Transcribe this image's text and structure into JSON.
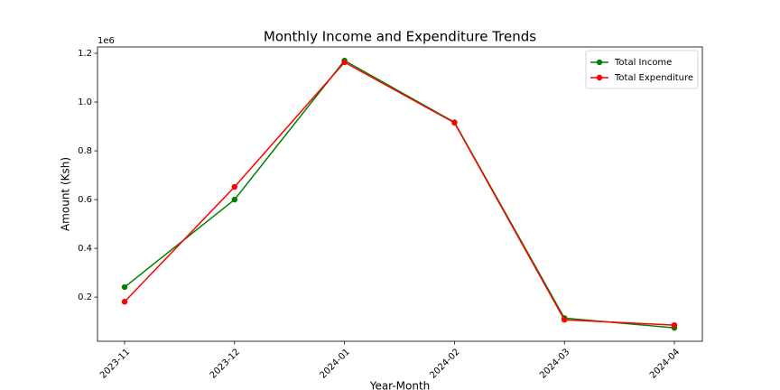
{
  "chart_data": {
    "type": "line",
    "title": "Monthly Income and Expenditure Trends",
    "x_label": "Year-Month",
    "y_label": "Amount (Ksh)",
    "y_offset_label": "1e6",
    "categories": [
      "2023-11",
      "2023-12",
      "2024-01",
      "2024-02",
      "2024-03",
      "2024-04"
    ],
    "series": [
      {
        "name": "Total Income",
        "color": "#008000",
        "values": [
          0.241,
          0.6,
          1.17,
          0.917,
          0.114,
          0.074
        ]
      },
      {
        "name": "Total Expenditure",
        "color": "#ff0000",
        "values": [
          0.181,
          0.652,
          1.163,
          0.915,
          0.107,
          0.085
        ]
      }
    ],
    "ylim": [
      0.019,
      1.226
    ],
    "yticks": [
      0.2,
      0.4,
      0.6,
      0.8,
      1.0,
      1.2
    ],
    "grid": false,
    "legend": "upper-right"
  }
}
